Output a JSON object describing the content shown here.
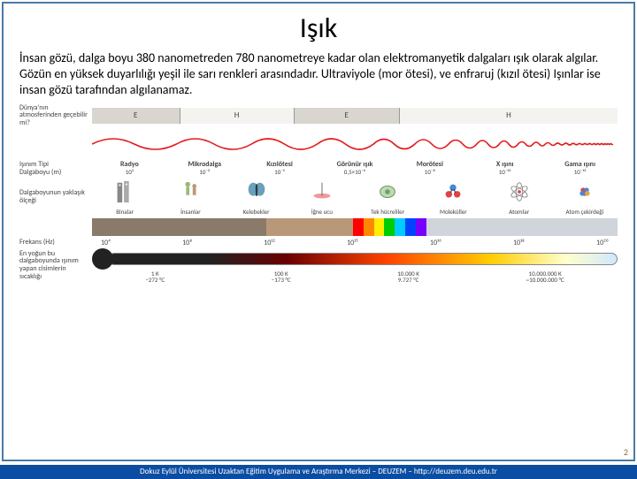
{
  "title": "Işık",
  "body_text": "İnsan gözü, dalga boyu 380 nanometreden 780 nanometreye kadar olan elektromanyetik dalgaları ışık olarak algılar. Gözün en yüksek duyarlılığı yeşil ile sarı renkleri arasındadır. Ultraviyole (mor ötesi), ve enfraruj (kızıl ötesi) Işınlar ise insan gözü tarafından algılanamaz.",
  "labels": {
    "atmosphere": "Dünya'nın atmosferinden geçebilir mi?",
    "radiation_type": "Işınım Tipi",
    "wavelength": "Dalgaboyu (m)",
    "wavelength_scale": "Dalgaboyunun yaklaşık ölçeği",
    "frequency": "Frekans (Hz)",
    "temperature": "En yoğun bu dalgaboyunda ışınım yapan cisimlerin sıcaklığı"
  },
  "atmosphere_segments": [
    {
      "label": "E",
      "yes": true,
      "flex": 1.0
    },
    {
      "label": "H",
      "yes": false,
      "flex": 1.3
    },
    {
      "label": "E",
      "yes": true,
      "flex": 1.2
    },
    {
      "label": "H",
      "yes": false,
      "flex": 2.5
    }
  ],
  "wave_color": "#e31b1b",
  "radiation_types": [
    {
      "name": "Radyo",
      "val": "10³"
    },
    {
      "name": "Mikrodalga",
      "val": "10⁻²"
    },
    {
      "name": "Kızılötesi",
      "val": "10⁻⁵"
    },
    {
      "name": "Görünür ışık",
      "val": "0,5×10⁻⁶"
    },
    {
      "name": "Morötesi",
      "val": "10⁻⁸"
    },
    {
      "name": "X ışını",
      "val": "10⁻¹⁰"
    },
    {
      "name": "Gama ışını",
      "val": "10⁻¹²"
    }
  ],
  "scale_icons": [
    {
      "name": "Binalar",
      "type": "building"
    },
    {
      "name": "İnsanlar",
      "type": "person"
    },
    {
      "name": "Kelebekler",
      "type": "butterfly"
    },
    {
      "name": "İğne ucu",
      "type": "needle"
    },
    {
      "name": "Tek hücreliler",
      "type": "cell"
    },
    {
      "name": "Moleküller",
      "type": "molecule"
    },
    {
      "name": "Atomlar",
      "type": "atom"
    },
    {
      "name": "Atom çekirdeği",
      "type": "nucleus"
    }
  ],
  "spectrum_segments": [
    {
      "color": "#8a7a6a",
      "flex": 2.0
    },
    {
      "color": "#b89878",
      "flex": 1.0
    },
    {
      "color": "#ff0000",
      "flex": 0.12
    },
    {
      "color": "#ff8800",
      "flex": 0.12
    },
    {
      "color": "#ffee00",
      "flex": 0.12
    },
    {
      "color": "#00cc00",
      "flex": 0.12
    },
    {
      "color": "#00ccff",
      "flex": 0.12
    },
    {
      "color": "#0044ff",
      "flex": 0.12
    },
    {
      "color": "#7700ff",
      "flex": 0.12
    },
    {
      "color": "#cfd5da",
      "flex": 2.2
    }
  ],
  "frequency_ticks": [
    "10⁴",
    "10⁸",
    "10¹²",
    "10¹⁵",
    "10¹⁶",
    "10¹⁸",
    "10²⁰"
  ],
  "temperature_ticks": [
    {
      "k": "1 K",
      "c": "−272 °C"
    },
    {
      "k": "100 K",
      "c": "−173 °C"
    },
    {
      "k": "10.000 K",
      "c": "9.727 °C"
    },
    {
      "k": "10.000.000 K",
      "c": "~10.000.000 °C"
    }
  ],
  "page_number": "2",
  "footer": "Dokuz Eylül Üniversitesi Uzaktan Eğitim Uygulama ve Araştırma Merkezi – DEUZEM – http://deuzem.deu.edu.tr"
}
